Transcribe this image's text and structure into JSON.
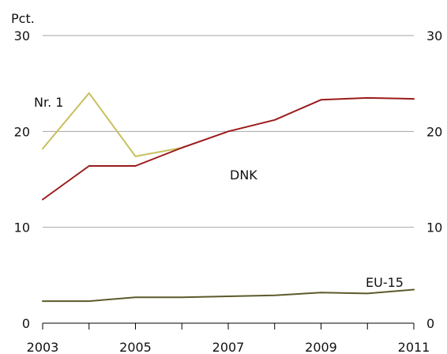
{
  "chart_data": {
    "type": "line",
    "unit_label": "Pct.",
    "x": [
      2003,
      2004,
      2005,
      2006,
      2007,
      2008,
      2009,
      2010,
      2011
    ],
    "x_tick_labels": [
      "2003",
      "2005",
      "2007",
      "2009",
      "2011"
    ],
    "x_tick_values": [
      2003,
      2005,
      2007,
      2009,
      2011
    ],
    "ylim": [
      0,
      30
    ],
    "y_ticks": [
      0,
      10,
      20,
      30
    ],
    "y_tick_labels": [
      "0",
      "10",
      "20",
      "30"
    ],
    "grid": true,
    "right_axis_mirrored": true,
    "series": [
      {
        "name": "Nr. 1",
        "color": "#c8c060",
        "x": [
          2003,
          2004,
          2005,
          2006
        ],
        "values": [
          18.2,
          24.0,
          17.4,
          18.3
        ]
      },
      {
        "name": "DNK",
        "color": "#9b1b1b",
        "x": [
          2003,
          2004,
          2005,
          2006,
          2007,
          2008,
          2009,
          2010,
          2011
        ],
        "values": [
          12.9,
          16.4,
          16.4,
          18.3,
          20.0,
          21.2,
          23.3,
          23.5,
          23.4
        ]
      },
      {
        "name": "EU-15",
        "color": "#5c5a2a",
        "x": [
          2003,
          2004,
          2005,
          2006,
          2007,
          2008,
          2009,
          2010,
          2011
        ],
        "values": [
          2.3,
          2.3,
          2.7,
          2.7,
          2.8,
          2.9,
          3.2,
          3.1,
          3.5
        ]
      }
    ]
  }
}
